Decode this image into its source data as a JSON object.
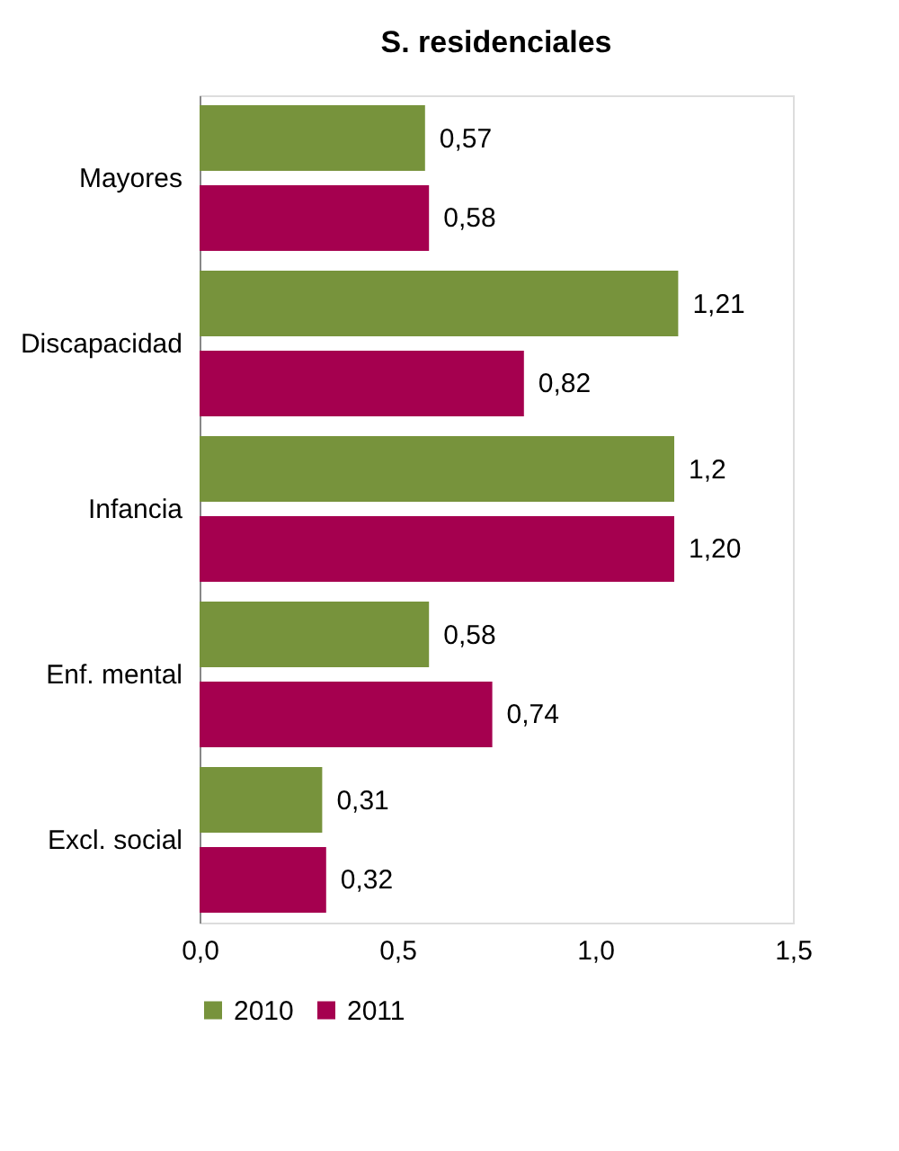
{
  "chart_data": {
    "type": "bar",
    "orientation": "horizontal",
    "title": "S. residenciales",
    "categories": [
      "Mayores",
      "Discapacidad",
      "Infancia",
      "Enf. mental",
      "Excl. social"
    ],
    "series": [
      {
        "name": "2010",
        "color": "#77933c",
        "values": [
          0.57,
          1.21,
          1.2,
          0.58,
          0.31
        ],
        "value_labels": [
          "0,57",
          "1,21",
          "1,2",
          "0,58",
          "0,31"
        ]
      },
      {
        "name": "2011",
        "color": "#a5004f",
        "values": [
          0.58,
          0.82,
          1.2,
          0.74,
          0.32
        ],
        "value_labels": [
          "0,58",
          "0,82",
          "1,20",
          "0,74",
          "0,32"
        ]
      }
    ],
    "xlim": [
      0,
      1.5
    ],
    "xticks": [
      {
        "value": 0,
        "label": "0,0"
      },
      {
        "value": 0.5,
        "label": "0,5"
      },
      {
        "value": 1,
        "label": "1,0"
      },
      {
        "value": 1.5,
        "label": "1,5"
      }
    ],
    "grid": false,
    "legend": "bottom"
  }
}
